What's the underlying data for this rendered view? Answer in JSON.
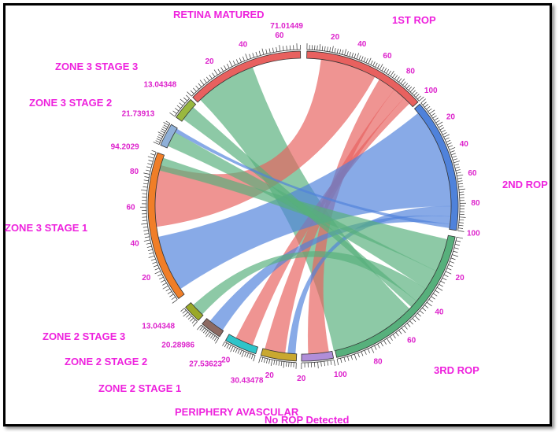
{
  "chart_data": {
    "type": "chord",
    "title": "",
    "segments": [
      {
        "name": "1ST ROP",
        "value": 100,
        "color": "#e8615f",
        "ticks": [
          "20",
          "40",
          "60",
          "80",
          "100"
        ],
        "start": 1.4,
        "end": 47.8
      },
      {
        "name": "2ND ROP",
        "value": 100,
        "color": "#4f82db",
        "ticks": [
          "20",
          "40",
          "60",
          "80",
          "100"
        ],
        "start": 48.8,
        "end": 99.0
      },
      {
        "name": "3RD ROP",
        "value": 100,
        "color": "#57b07c",
        "ticks": [
          "20",
          "40",
          "60",
          "80",
          "100"
        ],
        "start": 101.4,
        "end": 167.5
      },
      {
        "name": "No ROP Detected",
        "value": 20,
        "color": "#b08ed8",
        "ticks": [
          "20"
        ],
        "start": 168.7,
        "end": 180.6
      },
      {
        "name": "PERIPHERY AVASCULAR",
        "value": 30.43478,
        "color": "#c9a830",
        "ticks": [
          "20"
        ],
        "tick_end": "30.43478",
        "start": 182.5,
        "end": 195.8
      },
      {
        "name": "ZONE 2 STAGE 1",
        "value": 27.53623,
        "color": "#2ec4c9",
        "ticks": [
          "20"
        ],
        "tick_end": "27.53623",
        "start": 197.8,
        "end": 210.0
      },
      {
        "name": "ZONE 2 STAGE 2",
        "value": 20.28986,
        "color": "#8d6a62",
        "ticks": [],
        "tick_end": "20.28986",
        "start": 212.6,
        "end": 220.6
      },
      {
        "name": "ZONE 2 STAGE 3",
        "value": 13.04348,
        "color": "#9aa828",
        "ticks": [],
        "tick_end": "13.04348",
        "start": 222.5,
        "end": 229.3
      },
      {
        "name": "ZONE 3 STAGE 1",
        "value": 94.2029,
        "color": "#f07e28",
        "ticks": [
          "20",
          "40",
          "60",
          "80"
        ],
        "tick_end": "94.2029",
        "start": 233.4,
        "end": 290.2
      },
      {
        "name": "ZONE 3 STAGE 2",
        "value": 21.73913,
        "color": "#8fb0d8",
        "ticks": [],
        "tick_end": "21.73913",
        "start": 293.2,
        "end": 301.8
      },
      {
        "name": "ZONE 3 STAGE 3",
        "value": 13.04348,
        "color": "#99b840",
        "ticks": [],
        "tick_end": "13.04348",
        "start": 305.0,
        "end": 313.5
      },
      {
        "name": "RETINA MATURED",
        "value": 71.01449,
        "color": "#e8615f",
        "ticks": [
          "20",
          "40",
          "60"
        ],
        "tick_end": "71.01449",
        "start": 314.6,
        "end": 359.0
      }
    ],
    "chords": [
      {
        "from": "3RD ROP",
        "to": "RETINA MATURED",
        "color": "#57b07c",
        "a": [
          134,
          168
        ],
        "b": [
          316,
          340
        ]
      },
      {
        "from": "1ST ROP",
        "to": "ZONE 3 STAGE 1",
        "color": "#e8615f",
        "a": [
          7,
          29
        ],
        "b": [
          262,
          286
        ]
      },
      {
        "from": "1ST ROP",
        "to": "No ROP Detected",
        "color": "#e8615f",
        "a": [
          31,
          38
        ],
        "b": [
          170,
          178
        ]
      },
      {
        "from": "1ST ROP",
        "to": "PERIPHERY AVASCULAR",
        "color": "#e8615f",
        "a": [
          38,
          43
        ],
        "b": [
          187,
          195
        ]
      },
      {
        "from": "1ST ROP",
        "to": "ZONE 2 STAGE 1",
        "color": "#e8615f",
        "a": [
          43,
          46
        ],
        "b": [
          200,
          207
        ]
      },
      {
        "from": "2ND ROP",
        "to": "ZONE 3 STAGE 1",
        "color": "#4f82db",
        "a": [
          51,
          90
        ],
        "b": [
          236,
          258
        ]
      },
      {
        "from": "2ND ROP",
        "to": "PERIPHERY AVASCULAR",
        "color": "#4f82db",
        "a": [
          90,
          94
        ],
        "b": [
          183,
          186
        ]
      },
      {
        "from": "2ND ROP",
        "to": "ZONE 2 STAGE 2",
        "color": "#4f82db",
        "a": [
          94,
          97
        ],
        "b": [
          213,
          219
        ]
      },
      {
        "from": "3RD ROP",
        "to": "ZONE 3 STAGE 1",
        "color": "#57b07c",
        "a": [
          103,
          116
        ],
        "b": [
          284,
          289
        ]
      },
      {
        "from": "3RD ROP",
        "to": "ZONE 3 STAGE 2",
        "color": "#57b07c",
        "a": [
          116,
          124
        ],
        "b": [
          294,
          300
        ]
      },
      {
        "from": "3RD ROP",
        "to": "ZONE 2 STAGE 3",
        "color": "#57b07c",
        "a": [
          124,
          130
        ],
        "b": [
          223,
          228
        ]
      },
      {
        "from": "3RD ROP",
        "to": "ZONE 3 STAGE 3",
        "color": "#57b07c",
        "a": [
          130,
          133
        ],
        "b": [
          306,
          312
        ]
      },
      {
        "from": "2ND ROP",
        "to": "ZONE 3 STAGE 2",
        "color": "#4f82db",
        "a": [
          97,
          98.5
        ],
        "b": [
          300,
          301.5
        ]
      }
    ]
  }
}
